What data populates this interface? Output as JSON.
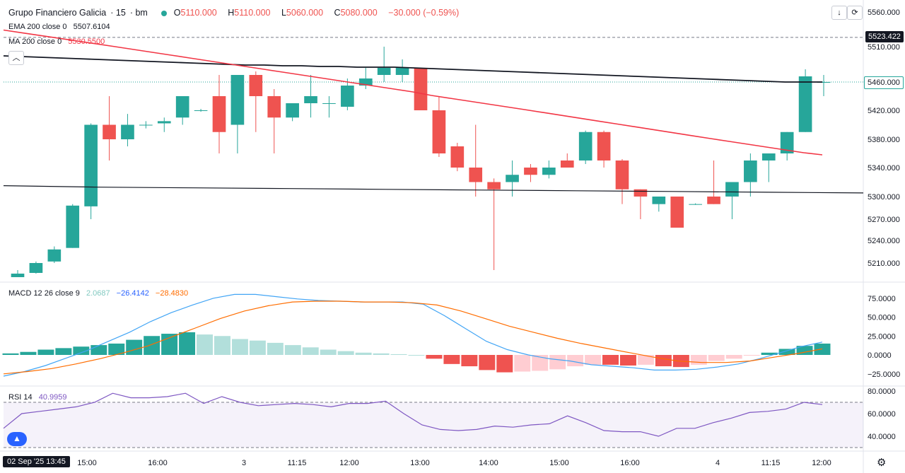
{
  "header": {
    "symbol": "Grupo Financiero Galicia",
    "interval": "15",
    "exchange": "bm",
    "open_label": "O",
    "open": "5110.000",
    "high_label": "H",
    "high": "5110.000",
    "low_label": "L",
    "low": "5060.000",
    "close_label": "C",
    "close": "5080.000",
    "change": "−30.000 (−0.59%)",
    "ema_label": "EMA 200 close 0",
    "ema_value": "5507.6104",
    "ma_label": "MA 200 close 0",
    "ma_value": "5530.5500",
    "macd_label": "MACD 12 26 close 9",
    "macd_hist": "2.0687",
    "macd_line": "−26.4142",
    "macd_signal": "−28.4830",
    "rsi_label": "RSI 14",
    "rsi_value": "40.9959"
  },
  "price_axis": {
    "ticks": [
      "5560.000",
      "5510.000",
      "5420.000",
      "5380.000",
      "5340.000",
      "5300.000",
      "5270.000",
      "5240.000",
      "5210.000"
    ],
    "tag_upper": "5523.422",
    "tag_last": "5460.000"
  },
  "macd_axis": {
    "ticks": [
      "75.0000",
      "50.0000",
      "25.0000",
      "0.0000",
      "−25.0000"
    ]
  },
  "rsi_axis": {
    "ticks": [
      "80.0000",
      "60.0000",
      "40.0000"
    ]
  },
  "time_axis": {
    "labels": [
      "15:00",
      "16:00",
      "3",
      "11:15",
      "12:00",
      "13:00",
      "14:00",
      "15:00",
      "16:00",
      "4",
      "11:15",
      "12:00"
    ],
    "cursor_label": "02 Sep '25   13:45"
  },
  "colors": {
    "up": "#26a69a",
    "down": "#ef5350",
    "ema": "#131722",
    "ma": "#f23645",
    "macd": "#2962ff",
    "signal": "#ff6d00",
    "rsi": "#7e57c2"
  },
  "chart_data": [
    {
      "type": "candlestick",
      "title": "Grupo Financiero Galicia · 15 · bm",
      "ylim": [
        5190,
        5575
      ],
      "candles": [
        {
          "o": 5190,
          "h": 5200,
          "l": 5190,
          "c": 5195
        },
        {
          "o": 5196,
          "h": 5212,
          "l": 5195,
          "c": 5210
        },
        {
          "o": 5212,
          "h": 5232,
          "l": 5210,
          "c": 5228
        },
        {
          "o": 5230,
          "h": 5290,
          "l": 5230,
          "c": 5288
        },
        {
          "o": 5287,
          "h": 5402,
          "l": 5270,
          "c": 5400
        },
        {
          "o": 5400,
          "h": 5440,
          "l": 5350,
          "c": 5380
        },
        {
          "o": 5380,
          "h": 5415,
          "l": 5370,
          "c": 5400
        },
        {
          "o": 5400,
          "h": 5405,
          "l": 5395,
          "c": 5400
        },
        {
          "o": 5402,
          "h": 5410,
          "l": 5390,
          "c": 5405
        },
        {
          "o": 5410,
          "h": 5440,
          "l": 5400,
          "c": 5440
        },
        {
          "o": 5420,
          "h": 5422,
          "l": 5418,
          "c": 5420
        },
        {
          "o": 5440,
          "h": 5470,
          "l": 5360,
          "c": 5390
        },
        {
          "o": 5400,
          "h": 5470,
          "l": 5360,
          "c": 5470
        },
        {
          "o": 5470,
          "h": 5475,
          "l": 5390,
          "c": 5440
        },
        {
          "o": 5440,
          "h": 5450,
          "l": 5360,
          "c": 5410
        },
        {
          "o": 5410,
          "h": 5430,
          "l": 5405,
          "c": 5430
        },
        {
          "o": 5430,
          "h": 5470,
          "l": 5410,
          "c": 5440
        },
        {
          "o": 5430,
          "h": 5440,
          "l": 5410,
          "c": 5430
        },
        {
          "o": 5425,
          "h": 5465,
          "l": 5420,
          "c": 5455
        },
        {
          "o": 5455,
          "h": 5480,
          "l": 5450,
          "c": 5465
        },
        {
          "o": 5470,
          "h": 5510,
          "l": 5460,
          "c": 5480
        },
        {
          "o": 5470,
          "h": 5492,
          "l": 5460,
          "c": 5480
        },
        {
          "o": 5480,
          "h": 5480,
          "l": 5420,
          "c": 5420
        },
        {
          "o": 5420,
          "h": 5440,
          "l": 5355,
          "c": 5360
        },
        {
          "o": 5370,
          "h": 5375,
          "l": 5335,
          "c": 5340
        },
        {
          "o": 5340,
          "h": 5400,
          "l": 5300,
          "c": 5320
        },
        {
          "o": 5320,
          "h": 5325,
          "l": 5200,
          "c": 5310
        },
        {
          "o": 5320,
          "h": 5350,
          "l": 5300,
          "c": 5330
        },
        {
          "o": 5340,
          "h": 5345,
          "l": 5320,
          "c": 5330
        },
        {
          "o": 5330,
          "h": 5350,
          "l": 5325,
          "c": 5340
        },
        {
          "o": 5350,
          "h": 5360,
          "l": 5340,
          "c": 5340
        },
        {
          "o": 5350,
          "h": 5392,
          "l": 5345,
          "c": 5390
        },
        {
          "o": 5390,
          "h": 5392,
          "l": 5340,
          "c": 5350
        },
        {
          "o": 5350,
          "h": 5352,
          "l": 5290,
          "c": 5310
        },
        {
          "o": 5310,
          "h": 5310,
          "l": 5270,
          "c": 5300
        },
        {
          "o": 5290,
          "h": 5300,
          "l": 5280,
          "c": 5300
        },
        {
          "o": 5300,
          "h": 5300,
          "l": 5258,
          "c": 5258
        },
        {
          "o": 5290,
          "h": 5291,
          "l": 5289,
          "c": 5290
        },
        {
          "o": 5300,
          "h": 5350,
          "l": 5290,
          "c": 5290
        },
        {
          "o": 5300,
          "h": 5320,
          "l": 5270,
          "c": 5320
        },
        {
          "o": 5320,
          "h": 5360,
          "l": 5300,
          "c": 5350
        },
        {
          "o": 5350,
          "h": 5360,
          "l": 5320,
          "c": 5360
        },
        {
          "o": 5360,
          "h": 5390,
          "l": 5350,
          "c": 5390
        },
        {
          "o": 5390,
          "h": 5478,
          "l": 5390,
          "c": 5468
        },
        {
          "o": 5460,
          "h": 5470,
          "l": 5440,
          "c": 5460
        }
      ],
      "series": [
        {
          "name": "EMA 200 close 0",
          "values": [
            5497,
            5496,
            5495,
            5494,
            5493,
            5492,
            5491,
            5490,
            5489,
            5488,
            5487,
            5486,
            5485,
            5484,
            5484,
            5483,
            5483,
            5482,
            5482,
            5481,
            5481,
            5481,
            5480,
            5479,
            5478,
            5477,
            5476,
            5475,
            5474,
            5473,
            5472,
            5471,
            5470,
            5469,
            5468,
            5467,
            5466,
            5465,
            5464,
            5463,
            5462,
            5461,
            5460,
            5460,
            5460
          ]
        },
        {
          "name": "MA 200 close 0",
          "values": [
            5534,
            5530,
            5526,
            5522,
            5518,
            5514,
            5510,
            5506,
            5502,
            5498,
            5494,
            5490,
            5486,
            5482,
            5478,
            5474,
            5470,
            5466,
            5462,
            5458,
            5454,
            5450,
            5446,
            5441,
            5437,
            5433,
            5429,
            5425,
            5421,
            5417,
            5413,
            5409,
            5405,
            5401,
            5397,
            5393,
            5389,
            5385,
            5381,
            5377,
            5373,
            5369,
            5365,
            5361,
            5358
          ]
        },
        {
          "name": "trendline",
          "values": [
            5315,
            5313,
            5312,
            5311,
            5310,
            5309,
            5308,
            5307,
            5306,
            5305
          ]
        }
      ]
    },
    {
      "type": "bar",
      "title": "MACD 12 26 close 9",
      "ylim": [
        -35,
        85
      ],
      "series": [
        {
          "name": "histogram",
          "values": [
            2,
            4,
            7,
            9,
            11,
            13,
            15,
            20,
            25,
            28,
            30,
            27,
            25,
            21,
            19,
            16,
            13,
            10,
            7,
            5,
            3,
            2,
            1,
            0,
            -5,
            -12,
            -15,
            -20,
            -23,
            -22,
            -21,
            -19,
            -15,
            -13,
            -13,
            -14,
            -13,
            -15,
            -16,
            -13,
            -8,
            -5,
            -1,
            3,
            8,
            12,
            15
          ]
        },
        {
          "name": "macd",
          "values": [
            -28,
            -22,
            -14,
            -4,
            6,
            18,
            30,
            44,
            56,
            66,
            75,
            80,
            80,
            77,
            74,
            72,
            71,
            70,
            70,
            70,
            67,
            52,
            35,
            18,
            7,
            0,
            -5,
            -8,
            -13,
            -15,
            -17,
            -20,
            -20,
            -19,
            -16,
            -12,
            -5,
            3,
            11,
            17
          ]
        },
        {
          "name": "signal",
          "values": [
            -25,
            -22,
            -18,
            -12,
            -5,
            3,
            12,
            24,
            36,
            48,
            58,
            65,
            70,
            71,
            71,
            70,
            70,
            69,
            66,
            58,
            48,
            38,
            30,
            22,
            15,
            9,
            3,
            -3,
            -8,
            -10,
            -10,
            -8,
            -3,
            2,
            8
          ]
        }
      ]
    },
    {
      "type": "line",
      "title": "RSI 14",
      "ylim": [
        30,
        85
      ],
      "series": [
        {
          "name": "RSI",
          "values": [
            47,
            60,
            62,
            64,
            66,
            70,
            78,
            74,
            74,
            75,
            78,
            69,
            75,
            70,
            67,
            68,
            69,
            68,
            66,
            69,
            69,
            71,
            60,
            50,
            46,
            45,
            46,
            49,
            48,
            50,
            51,
            58,
            52,
            45,
            44,
            44,
            40,
            47,
            47,
            52,
            56,
            61,
            62,
            64,
            70,
            68
          ]
        }
      ]
    }
  ]
}
